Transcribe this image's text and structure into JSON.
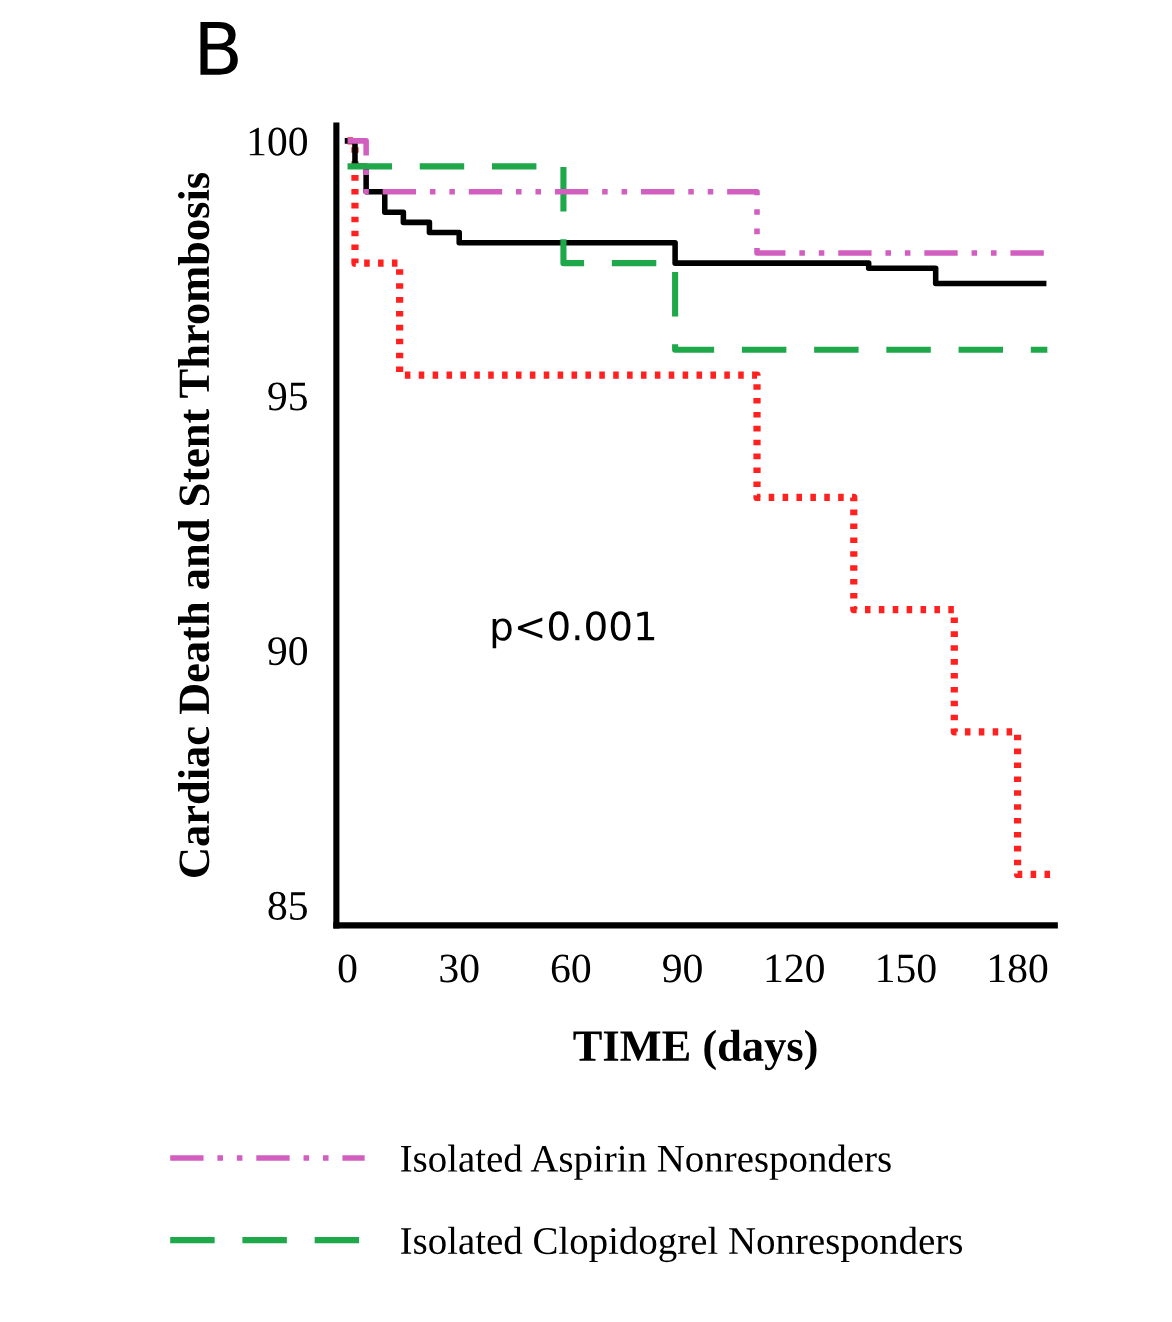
{
  "chart_data": {
    "type": "step",
    "title": "B",
    "xlabel": "TIME (days)",
    "ylabel": "Cardiac Death and Stent Thrombosis",
    "xlim": [
      -3,
      190
    ],
    "ylim": [
      84.6,
      100.3
    ],
    "xticks": [
      0,
      30,
      60,
      90,
      120,
      150,
      180
    ],
    "yticks": [
      85,
      90,
      95,
      100
    ],
    "grid": false,
    "legend": "bottom",
    "annotations": [
      "p<0.001"
    ],
    "series": [
      {
        "name": "Isolated Aspirin Nonresponders",
        "color": "#d25fc0",
        "line_style": "dashdotdot",
        "x": [
          0,
          5,
          110,
          190
        ],
        "values": [
          100,
          99.0,
          97.8,
          97.8
        ]
      },
      {
        "name": "Isolated Clopidogrel Nonresponders",
        "color": "#1fa84a",
        "line_style": "dashed",
        "x": [
          0,
          58,
          88,
          188
        ],
        "values": [
          99.5,
          97.6,
          95.9,
          95.9
        ]
      },
      {
        "color": "#000000",
        "line_style": "solid",
        "x": [
          0,
          2,
          5,
          10,
          15,
          22,
          30,
          88,
          140,
          158,
          187
        ],
        "values": [
          100,
          99.5,
          99.0,
          98.6,
          98.4,
          98.2,
          98.0,
          97.6,
          97.5,
          97.2,
          97.2
        ]
      },
      {
        "color": "#ff2020",
        "line_style": "dotted",
        "x": [
          0,
          2,
          14,
          110,
          136,
          163,
          180,
          190
        ],
        "values": [
          100,
          97.6,
          95.4,
          93.0,
          90.8,
          88.4,
          85.6,
          85.6
        ]
      }
    ]
  }
}
